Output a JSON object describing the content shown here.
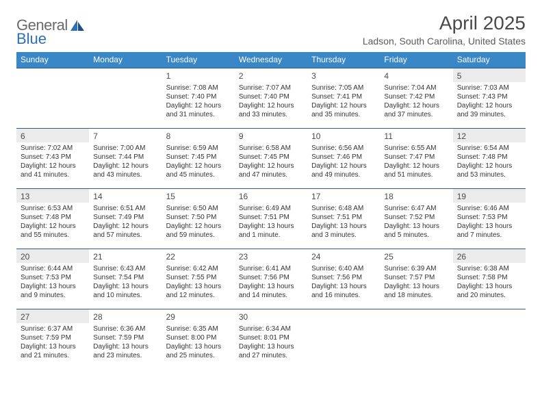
{
  "logo": {
    "text1": "General",
    "text2": "Blue"
  },
  "title": "April 2025",
  "subtitle": "Ladson, South Carolina, United States",
  "colors": {
    "header_bg": "#3a87c8",
    "header_text": "#ffffff",
    "row_border": "#2f5a8a",
    "shaded_bg": "#ebebeb",
    "text": "#333333",
    "title_text": "#4a4a4a",
    "logo_gray": "#6a6a6a",
    "logo_blue": "#2f6fb3"
  },
  "day_headers": [
    "Sunday",
    "Monday",
    "Tuesday",
    "Wednesday",
    "Thursday",
    "Friday",
    "Saturday"
  ],
  "weeks": [
    [
      {
        "empty": true
      },
      {
        "empty": true
      },
      {
        "num": "1",
        "sunrise": "7:08 AM",
        "sunset": "7:40 PM",
        "daylight": "12 hours and 31 minutes."
      },
      {
        "num": "2",
        "sunrise": "7:07 AM",
        "sunset": "7:40 PM",
        "daylight": "12 hours and 33 minutes."
      },
      {
        "num": "3",
        "sunrise": "7:05 AM",
        "sunset": "7:41 PM",
        "daylight": "12 hours and 35 minutes."
      },
      {
        "num": "4",
        "sunrise": "7:04 AM",
        "sunset": "7:42 PM",
        "daylight": "12 hours and 37 minutes."
      },
      {
        "num": "5",
        "sunrise": "7:03 AM",
        "sunset": "7:43 PM",
        "daylight": "12 hours and 39 minutes."
      }
    ],
    [
      {
        "num": "6",
        "sunrise": "7:02 AM",
        "sunset": "7:43 PM",
        "daylight": "12 hours and 41 minutes."
      },
      {
        "num": "7",
        "sunrise": "7:00 AM",
        "sunset": "7:44 PM",
        "daylight": "12 hours and 43 minutes."
      },
      {
        "num": "8",
        "sunrise": "6:59 AM",
        "sunset": "7:45 PM",
        "daylight": "12 hours and 45 minutes."
      },
      {
        "num": "9",
        "sunrise": "6:58 AM",
        "sunset": "7:45 PM",
        "daylight": "12 hours and 47 minutes."
      },
      {
        "num": "10",
        "sunrise": "6:56 AM",
        "sunset": "7:46 PM",
        "daylight": "12 hours and 49 minutes."
      },
      {
        "num": "11",
        "sunrise": "6:55 AM",
        "sunset": "7:47 PM",
        "daylight": "12 hours and 51 minutes."
      },
      {
        "num": "12",
        "sunrise": "6:54 AM",
        "sunset": "7:48 PM",
        "daylight": "12 hours and 53 minutes."
      }
    ],
    [
      {
        "num": "13",
        "sunrise": "6:53 AM",
        "sunset": "7:48 PM",
        "daylight": "12 hours and 55 minutes."
      },
      {
        "num": "14",
        "sunrise": "6:51 AM",
        "sunset": "7:49 PM",
        "daylight": "12 hours and 57 minutes."
      },
      {
        "num": "15",
        "sunrise": "6:50 AM",
        "sunset": "7:50 PM",
        "daylight": "12 hours and 59 minutes."
      },
      {
        "num": "16",
        "sunrise": "6:49 AM",
        "sunset": "7:51 PM",
        "daylight": "13 hours and 1 minute."
      },
      {
        "num": "17",
        "sunrise": "6:48 AM",
        "sunset": "7:51 PM",
        "daylight": "13 hours and 3 minutes."
      },
      {
        "num": "18",
        "sunrise": "6:47 AM",
        "sunset": "7:52 PM",
        "daylight": "13 hours and 5 minutes."
      },
      {
        "num": "19",
        "sunrise": "6:46 AM",
        "sunset": "7:53 PM",
        "daylight": "13 hours and 7 minutes."
      }
    ],
    [
      {
        "num": "20",
        "sunrise": "6:44 AM",
        "sunset": "7:53 PM",
        "daylight": "13 hours and 9 minutes."
      },
      {
        "num": "21",
        "sunrise": "6:43 AM",
        "sunset": "7:54 PM",
        "daylight": "13 hours and 10 minutes."
      },
      {
        "num": "22",
        "sunrise": "6:42 AM",
        "sunset": "7:55 PM",
        "daylight": "13 hours and 12 minutes."
      },
      {
        "num": "23",
        "sunrise": "6:41 AM",
        "sunset": "7:56 PM",
        "daylight": "13 hours and 14 minutes."
      },
      {
        "num": "24",
        "sunrise": "6:40 AM",
        "sunset": "7:56 PM",
        "daylight": "13 hours and 16 minutes."
      },
      {
        "num": "25",
        "sunrise": "6:39 AM",
        "sunset": "7:57 PM",
        "daylight": "13 hours and 18 minutes."
      },
      {
        "num": "26",
        "sunrise": "6:38 AM",
        "sunset": "7:58 PM",
        "daylight": "13 hours and 20 minutes."
      }
    ],
    [
      {
        "num": "27",
        "sunrise": "6:37 AM",
        "sunset": "7:59 PM",
        "daylight": "13 hours and 21 minutes."
      },
      {
        "num": "28",
        "sunrise": "6:36 AM",
        "sunset": "7:59 PM",
        "daylight": "13 hours and 23 minutes."
      },
      {
        "num": "29",
        "sunrise": "6:35 AM",
        "sunset": "8:00 PM",
        "daylight": "13 hours and 25 minutes."
      },
      {
        "num": "30",
        "sunrise": "6:34 AM",
        "sunset": "8:01 PM",
        "daylight": "13 hours and 27 minutes."
      },
      {
        "empty": true
      },
      {
        "empty": true
      },
      {
        "empty": true
      }
    ]
  ],
  "labels": {
    "sunrise": "Sunrise:",
    "sunset": "Sunset:",
    "daylight": "Daylight:"
  }
}
